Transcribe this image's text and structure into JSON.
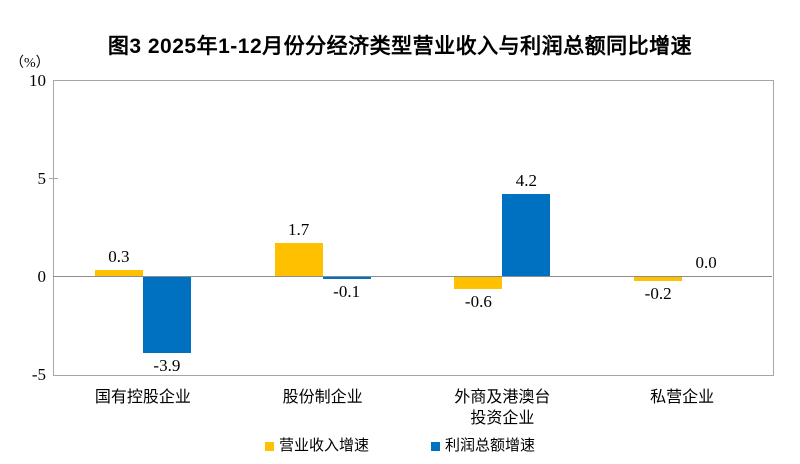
{
  "chart_data": {
    "type": "bar",
    "title": "图3 2025年1-12月份分经济类型营业收入与利润总额同比增速",
    "unit": "（%）",
    "categories": [
      "国有控股企业",
      "股份制企业",
      "外商及港澳台\n投资企业",
      "私营企业"
    ],
    "series": [
      {
        "name": "营业收入增速",
        "color": "#FFC000",
        "values": [
          0.3,
          1.7,
          -0.6,
          -0.2
        ]
      },
      {
        "name": "利润总额增速",
        "color": "#0070C0",
        "values": [
          -3.9,
          -0.1,
          4.2,
          0.0
        ]
      }
    ],
    "ylim": [
      -5,
      10
    ],
    "yticks": [
      10,
      5,
      0,
      -5
    ],
    "ylabel": "",
    "xlabel": "",
    "grid": false,
    "legend_position": "bottom",
    "axis_color": "#a6a6a6",
    "zero_line_color": "#8c8c8c"
  }
}
